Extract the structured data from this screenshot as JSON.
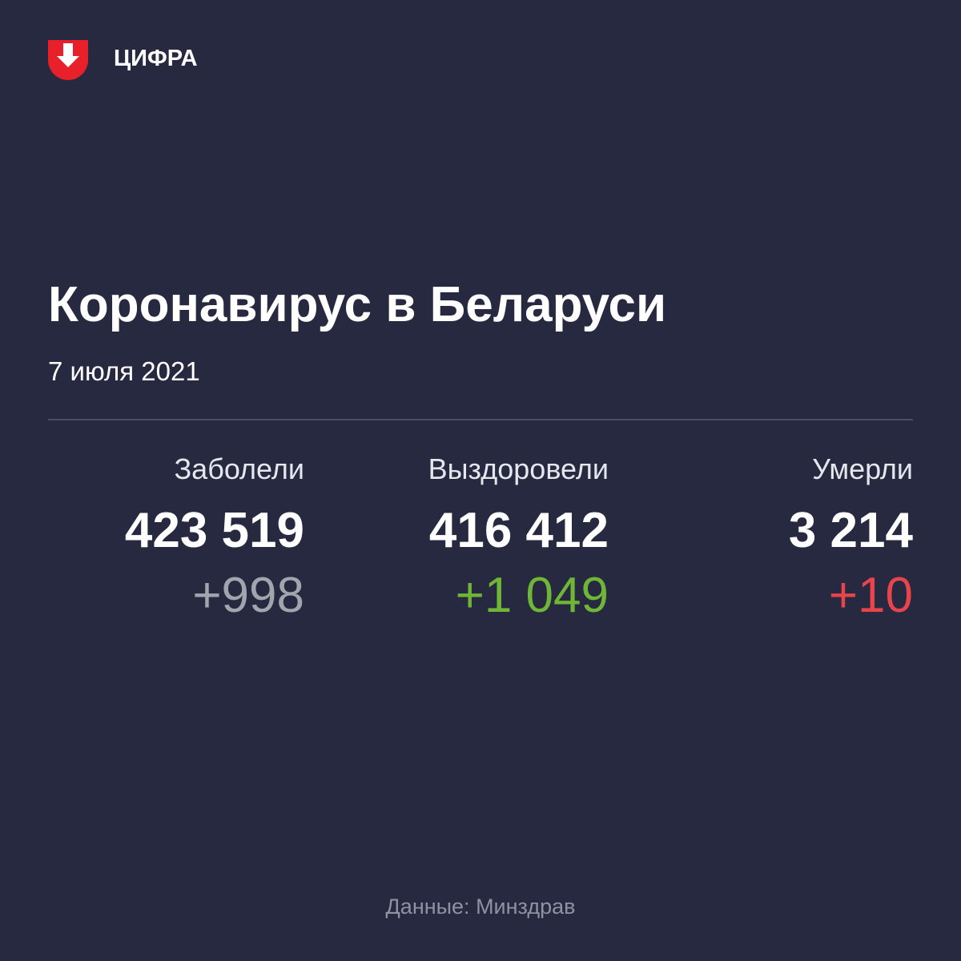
{
  "header": {
    "brand": "ЦИФРА"
  },
  "title": "Коронавирус в Беларуси",
  "date": "7 июля 2021",
  "stats": [
    {
      "label": "Заболели",
      "total": "423 519",
      "delta": "+998",
      "color": "#a3a5ae"
    },
    {
      "label": "Выздоровели",
      "total": "416 412",
      "delta": "+1 049",
      "color": "#6fb536"
    },
    {
      "label": "Умерли",
      "total": "3 214",
      "delta": "+10",
      "color": "#e8444c"
    }
  ],
  "source": "Данные: Минздрав"
}
